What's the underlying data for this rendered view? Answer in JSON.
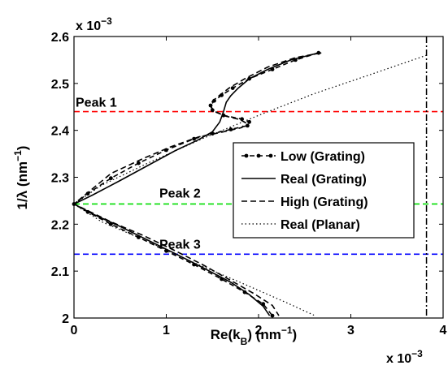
{
  "chart_data": {
    "type": "line",
    "xlabel": "Re(k_B) (nm^-1)",
    "ylabel": "1/λ (nm^-1)",
    "x_multiplier": "x 10^-3",
    "y_multiplier": "x 10^-3",
    "xlim": [
      0,
      4
    ],
    "ylim": [
      2.0,
      2.6
    ],
    "x_ticks": [
      "0",
      "1",
      "2",
      "3",
      "4"
    ],
    "y_ticks": [
      "2",
      "2.1",
      "2.2",
      "2.3",
      "2.4",
      "2.5",
      "2.6"
    ],
    "grid": false,
    "legend_position": "right",
    "series": [
      {
        "name": "Low (Grating)",
        "style": "dash-dot-markers",
        "color": "#000000",
        "points": [
          [
            2.65,
            2.565
          ],
          [
            2.4,
            2.55
          ],
          [
            2.15,
            2.53
          ],
          [
            1.9,
            2.51
          ],
          [
            1.72,
            2.49
          ],
          [
            1.6,
            2.475
          ],
          [
            1.52,
            2.463
          ],
          [
            1.48,
            2.453
          ],
          [
            1.5,
            2.443
          ],
          [
            1.62,
            2.432
          ],
          [
            1.82,
            2.424
          ],
          [
            1.9,
            2.418
          ],
          [
            1.88,
            2.41
          ],
          [
            1.7,
            2.402
          ],
          [
            1.5,
            2.393
          ],
          [
            1.3,
            2.382
          ],
          [
            1.0,
            2.358
          ],
          [
            0.7,
            2.33
          ],
          [
            0.4,
            2.298
          ],
          [
            0.15,
            2.265
          ],
          [
            0.0,
            2.243
          ],
          [
            0.15,
            2.226
          ],
          [
            0.4,
            2.2
          ],
          [
            0.7,
            2.172
          ],
          [
            1.0,
            2.143
          ],
          [
            1.3,
            2.114
          ],
          [
            1.6,
            2.083
          ],
          [
            1.85,
            2.055
          ],
          [
            2.05,
            2.03
          ],
          [
            2.15,
            2.005
          ]
        ]
      },
      {
        "name": "Real (Grating)",
        "style": "solid",
        "color": "#000000",
        "points": [
          [
            2.65,
            2.565
          ],
          [
            2.35,
            2.55
          ],
          [
            2.1,
            2.53
          ],
          [
            1.9,
            2.51
          ],
          [
            1.78,
            2.49
          ],
          [
            1.7,
            2.474
          ],
          [
            1.65,
            2.46
          ],
          [
            1.62,
            2.44
          ],
          [
            1.58,
            2.418
          ],
          [
            1.5,
            2.397
          ],
          [
            1.35,
            2.38
          ],
          [
            1.1,
            2.357
          ],
          [
            0.8,
            2.325
          ],
          [
            0.5,
            2.293
          ],
          [
            0.2,
            2.262
          ],
          [
            0.0,
            2.243
          ],
          [
            0.2,
            2.222
          ],
          [
            0.5,
            2.195
          ],
          [
            0.8,
            2.166
          ],
          [
            1.1,
            2.137
          ],
          [
            1.4,
            2.107
          ],
          [
            1.7,
            2.076
          ],
          [
            1.9,
            2.05
          ],
          [
            2.05,
            2.025
          ],
          [
            2.12,
            2.005
          ]
        ]
      },
      {
        "name": "High (Grating)",
        "style": "dashed",
        "color": "#000000",
        "points": [
          [
            2.68,
            2.565
          ],
          [
            2.4,
            2.555
          ],
          [
            2.1,
            2.535
          ],
          [
            1.85,
            2.51
          ],
          [
            1.68,
            2.49
          ],
          [
            1.56,
            2.472
          ],
          [
            1.5,
            2.462
          ],
          [
            1.48,
            2.452
          ],
          [
            1.52,
            2.44
          ],
          [
            1.65,
            2.43
          ],
          [
            1.8,
            2.423
          ],
          [
            1.86,
            2.416
          ],
          [
            1.82,
            2.406
          ],
          [
            1.6,
            2.396
          ],
          [
            1.35,
            2.386
          ],
          [
            1.05,
            2.365
          ],
          [
            0.75,
            2.34
          ],
          [
            0.4,
            2.308
          ],
          [
            0.0,
            2.243
          ],
          [
            0.4,
            2.205
          ],
          [
            0.75,
            2.176
          ],
          [
            1.1,
            2.143
          ],
          [
            1.4,
            2.113
          ],
          [
            1.7,
            2.08
          ],
          [
            1.95,
            2.052
          ],
          [
            2.15,
            2.027
          ],
          [
            2.22,
            2.005
          ]
        ]
      },
      {
        "name": "Real (Planar)",
        "style": "dotted",
        "color": "#000000",
        "points": [
          [
            3.82,
            2.56
          ],
          [
            3.2,
            2.518
          ],
          [
            2.6,
            2.478
          ],
          [
            2.0,
            2.432
          ],
          [
            1.4,
            2.383
          ],
          [
            0.8,
            2.33
          ],
          [
            0.3,
            2.283
          ],
          [
            0.0,
            2.243
          ],
          [
            0.3,
            2.205
          ],
          [
            0.8,
            2.163
          ],
          [
            1.3,
            2.118
          ],
          [
            1.8,
            2.076
          ],
          [
            2.3,
            2.033
          ],
          [
            2.6,
            2.006
          ]
        ]
      }
    ],
    "annotations": [
      {
        "text": "Peak 1",
        "y": 2.44,
        "color": "#ff0000"
      },
      {
        "text": "Peak 2",
        "y": 2.243,
        "color": "#00dd00"
      },
      {
        "text": "Peak 3",
        "y": 2.136,
        "color": "#0000ff"
      }
    ],
    "vertical_line": {
      "x": 3.82,
      "style": "dash-dot",
      "color": "#000000"
    }
  }
}
